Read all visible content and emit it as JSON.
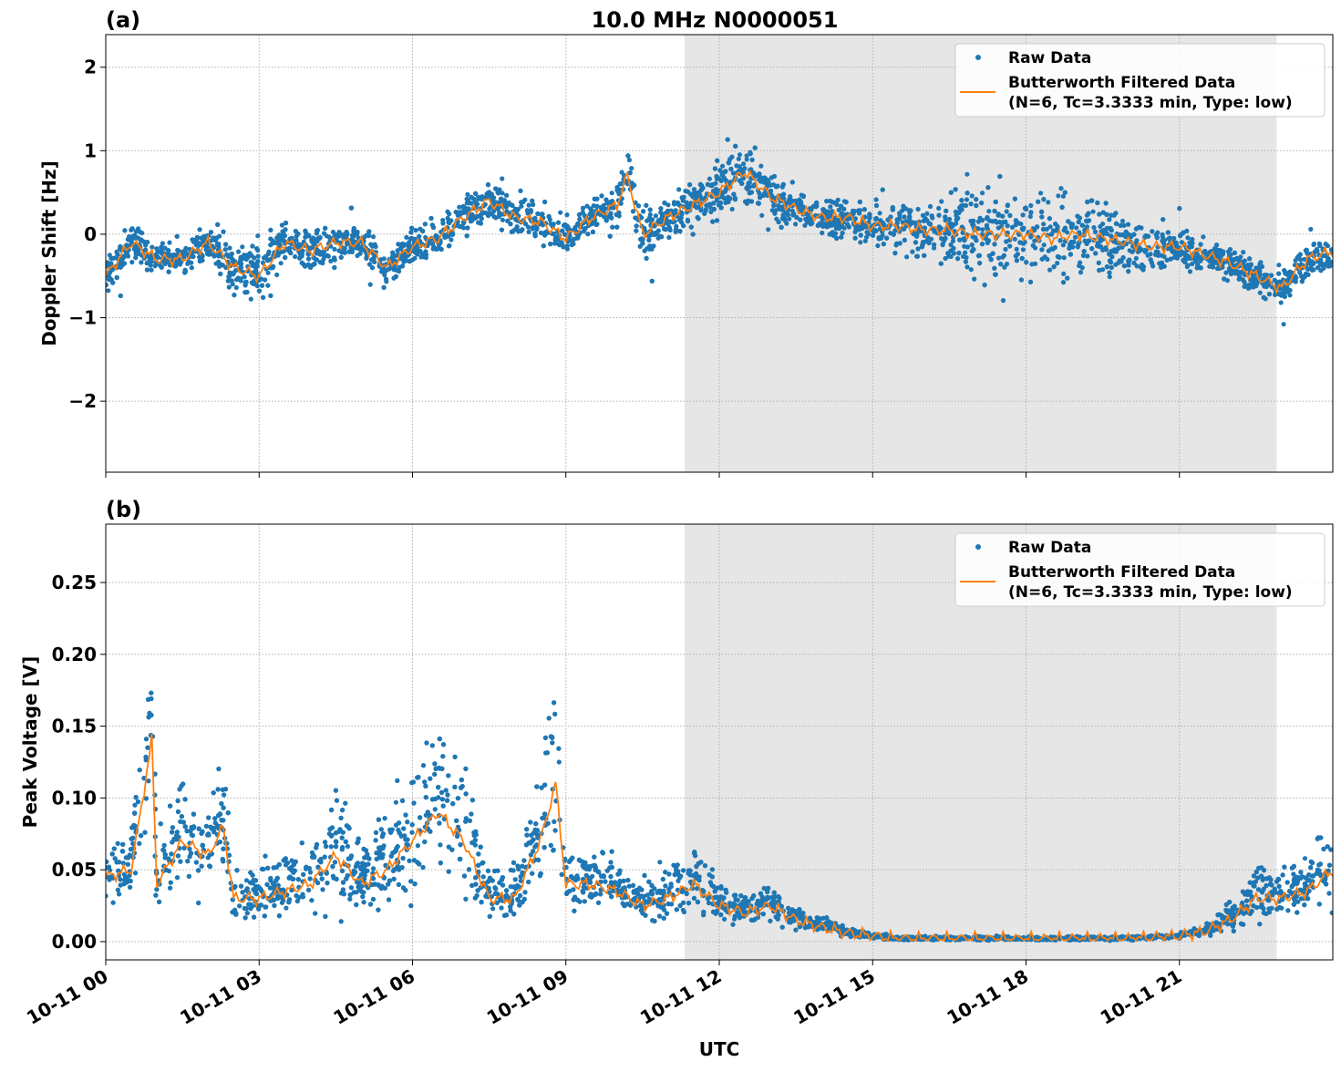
{
  "chart_data": [
    {
      "type": "scatter",
      "panel_label": "(a)",
      "title": "10.0 MHz N0000051",
      "xlabel": "",
      "ylabel": "Doppler Shift [Hz]",
      "xlim_hours": [
        0,
        24
      ],
      "ylim": [
        -2.85,
        2.39
      ],
      "yticks": [
        2,
        1,
        0,
        -1,
        -2
      ],
      "ytick_labels": [
        "2",
        "1",
        "0",
        "−1",
        "−2"
      ],
      "grid": true,
      "shaded_interval_hours": [
        11.32,
        22.9
      ],
      "legend": {
        "placement": "top-right",
        "entries": [
          "Raw Data",
          "Butterworth Filtered Data",
          "(N=6, Tc=3.3333 min, Type: low)"
        ]
      },
      "x": [
        0,
        0.5,
        1,
        1.5,
        2,
        2.5,
        3,
        3.5,
        4,
        4.5,
        5,
        5.5,
        6,
        6.5,
        7,
        7.5,
        8,
        8.5,
        9,
        9.5,
        10,
        10.2,
        10.5,
        11,
        11.5,
        12,
        12.5,
        13,
        13.5,
        14,
        14.5,
        15,
        15.5,
        16,
        16.5,
        17,
        17.5,
        18,
        18.5,
        19,
        19.5,
        20,
        20.5,
        21,
        21.5,
        22,
        22.5,
        23,
        23.5,
        24
      ],
      "series": [
        {
          "name": "Butterworth Filtered Data",
          "color": "#ff7f0e",
          "values": [
            -0.5,
            -0.1,
            -0.3,
            -0.3,
            -0.1,
            -0.4,
            -0.5,
            -0.1,
            -0.2,
            -0.1,
            -0.1,
            -0.4,
            -0.15,
            -0.05,
            0.2,
            0.4,
            0.2,
            0.15,
            -0.05,
            0.2,
            0.35,
            0.7,
            0.0,
            0.2,
            0.35,
            0.5,
            0.75,
            0.45,
            0.3,
            0.2,
            0.2,
            0.1,
            0.1,
            0.05,
            0.05,
            0.0,
            0.0,
            0.0,
            -0.05,
            0.0,
            -0.05,
            -0.1,
            -0.15,
            -0.15,
            -0.25,
            -0.35,
            -0.5,
            -0.65,
            -0.3,
            -0.2
          ]
        },
        {
          "name": "Raw Data",
          "color": "#1f77b4",
          "spread": [
            0.35,
            0.3,
            0.3,
            0.3,
            0.3,
            0.4,
            0.6,
            0.4,
            0.35,
            0.35,
            0.3,
            0.35,
            0.3,
            0.3,
            0.3,
            0.4,
            0.3,
            0.3,
            0.25,
            0.3,
            0.35,
            0.5,
            0.5,
            0.35,
            0.4,
            0.45,
            0.5,
            0.45,
            0.3,
            0.3,
            0.3,
            0.35,
            0.5,
            0.6,
            0.8,
            0.8,
            0.8,
            0.8,
            0.8,
            0.8,
            0.7,
            0.5,
            0.4,
            0.35,
            0.3,
            0.3,
            0.3,
            0.35,
            0.3,
            0.3
          ]
        }
      ]
    },
    {
      "type": "scatter",
      "panel_label": "(b)",
      "xlabel": "UTC",
      "ylabel": "Peak Voltage [V]",
      "xlim_hours": [
        0,
        24
      ],
      "ylim": [
        -0.0127,
        0.2906
      ],
      "yticks": [
        0.25,
        0.2,
        0.15,
        0.1,
        0.05,
        0.0
      ],
      "ytick_labels": [
        "0.25",
        "0.20",
        "0.15",
        "0.10",
        "0.05",
        "0.00"
      ],
      "xticks_hours": [
        0,
        3,
        6,
        9,
        12,
        15,
        18,
        21
      ],
      "xtick_labels": [
        "10-11 00",
        "10-11 03",
        "10-11 06",
        "10-11 09",
        "10-11 12",
        "10-11 15",
        "10-11 18",
        "10-11 21"
      ],
      "grid": true,
      "shaded_interval_hours": [
        11.32,
        22.9
      ],
      "legend": {
        "placement": "top-right",
        "entries": [
          "Raw Data",
          "Butterworth Filtered Data",
          "(N=6, Tc=3.3333 min, Type: low)"
        ]
      },
      "x": [
        0,
        0.5,
        0.9,
        1,
        1.5,
        2,
        2.3,
        2.5,
        3,
        3.5,
        4,
        4.5,
        5,
        5.5,
        6,
        6.5,
        7,
        7.5,
        8,
        8.5,
        8.8,
        9,
        9.5,
        10,
        10.5,
        11,
        11.5,
        12,
        12.5,
        13,
        13.5,
        14,
        14.5,
        15,
        15.5,
        16,
        17,
        18,
        19,
        20,
        20.5,
        21,
        21.5,
        22,
        22.5,
        23,
        23.5,
        24
      ],
      "series": [
        {
          "name": "Butterworth Filtered Data",
          "color": "#ff7f0e",
          "values": [
            0.045,
            0.05,
            0.14,
            0.04,
            0.07,
            0.06,
            0.08,
            0.03,
            0.03,
            0.035,
            0.04,
            0.06,
            0.04,
            0.05,
            0.07,
            0.09,
            0.07,
            0.03,
            0.03,
            0.07,
            0.11,
            0.04,
            0.04,
            0.035,
            0.025,
            0.03,
            0.04,
            0.025,
            0.02,
            0.025,
            0.015,
            0.01,
            0.006,
            0.004,
            0.002,
            0.002,
            0.002,
            0.002,
            0.002,
            0.002,
            0.003,
            0.004,
            0.007,
            0.015,
            0.03,
            0.03,
            0.035,
            0.05
          ]
        },
        {
          "name": "Raw Data",
          "color": "#1f77b4",
          "spread": [
            0.04,
            0.04,
            0.1,
            0.04,
            0.06,
            0.05,
            0.06,
            0.03,
            0.025,
            0.03,
            0.04,
            0.06,
            0.04,
            0.05,
            0.08,
            0.09,
            0.07,
            0.03,
            0.03,
            0.07,
            0.1,
            0.04,
            0.03,
            0.03,
            0.02,
            0.03,
            0.03,
            0.02,
            0.015,
            0.02,
            0.012,
            0.008,
            0.005,
            0.003,
            0.002,
            0.002,
            0.002,
            0.002,
            0.002,
            0.002,
            0.002,
            0.003,
            0.006,
            0.015,
            0.03,
            0.03,
            0.03,
            0.05
          ]
        }
      ]
    }
  ]
}
